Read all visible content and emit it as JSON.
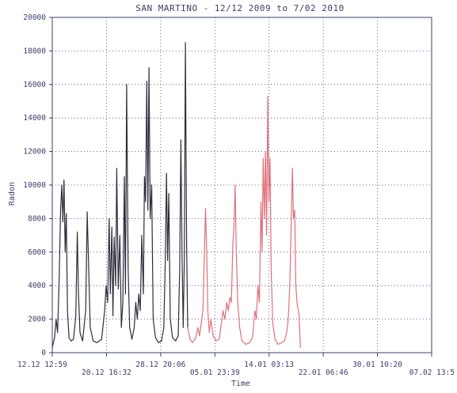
{
  "chart_data": {
    "type": "line",
    "title": "SAN MARTINO - 12/12 2009 to 7/02 2010",
    "xlabel": "Time",
    "ylabel": "Radon",
    "ylim": [
      0,
      20000
    ],
    "grid": true,
    "y_ticks": [
      0,
      2000,
      4000,
      6000,
      8000,
      10000,
      12000,
      14000,
      16000,
      18000,
      20000
    ],
    "y_tick_labels": [
      "0",
      "2000",
      "4000",
      "6000",
      "8000",
      "10000",
      "12000",
      "14000",
      "16000",
      "18000",
      "20000"
    ],
    "x_ticks": [
      {
        "label": "12.12 12:59",
        "pos": 0.0,
        "row": 0
      },
      {
        "label": "20.12 16:32",
        "pos": 0.1429,
        "row": 1
      },
      {
        "label": "28.12 20:06",
        "pos": 0.2857,
        "row": 0
      },
      {
        "label": "05.01 23:39",
        "pos": 0.4286,
        "row": 1
      },
      {
        "label": "14.01 03:13",
        "pos": 0.5714,
        "row": 0
      },
      {
        "label": "22.01 06:46",
        "pos": 0.7143,
        "row": 1
      },
      {
        "label": "30.01 10:20",
        "pos": 0.8571,
        "row": 0
      },
      {
        "label": "07.02 13:5",
        "pos": 1.0,
        "row": 1
      }
    ],
    "colors": {
      "frame": "#3a3f6e",
      "grid": "#3a3f6e",
      "series_1": "#2b2f3a",
      "series_2": "#e0707a"
    },
    "series": [
      {
        "color": "#2b2f3a",
        "points": [
          [
            0.0,
            300
          ],
          [
            0.006,
            900
          ],
          [
            0.01,
            2000
          ],
          [
            0.014,
            1200
          ],
          [
            0.018,
            4200
          ],
          [
            0.022,
            8500
          ],
          [
            0.025,
            10000
          ],
          [
            0.028,
            7800
          ],
          [
            0.031,
            10300
          ],
          [
            0.034,
            6000
          ],
          [
            0.037,
            8300
          ],
          [
            0.04,
            2500
          ],
          [
            0.044,
            900
          ],
          [
            0.05,
            700
          ],
          [
            0.056,
            800
          ],
          [
            0.062,
            2200
          ],
          [
            0.066,
            7200
          ],
          [
            0.069,
            3500
          ],
          [
            0.073,
            1200
          ],
          [
            0.08,
            700
          ],
          [
            0.088,
            2500
          ],
          [
            0.092,
            8400
          ],
          [
            0.096,
            5000
          ],
          [
            0.1,
            1500
          ],
          [
            0.108,
            700
          ],
          [
            0.118,
            600
          ],
          [
            0.13,
            800
          ],
          [
            0.138,
            2500
          ],
          [
            0.142,
            4000
          ],
          [
            0.146,
            3000
          ],
          [
            0.15,
            8000
          ],
          [
            0.153,
            3500
          ],
          [
            0.157,
            7500
          ],
          [
            0.16,
            2200
          ],
          [
            0.163,
            6900
          ],
          [
            0.167,
            4000
          ],
          [
            0.17,
            11000
          ],
          [
            0.174,
            3800
          ],
          [
            0.178,
            7000
          ],
          [
            0.182,
            1500
          ],
          [
            0.186,
            3000
          ],
          [
            0.19,
            10500
          ],
          [
            0.193,
            3500
          ],
          [
            0.196,
            16000
          ],
          [
            0.2,
            5000
          ],
          [
            0.204,
            1500
          ],
          [
            0.21,
            800
          ],
          [
            0.216,
            1500
          ],
          [
            0.22,
            3000
          ],
          [
            0.224,
            2000
          ],
          [
            0.228,
            3500
          ],
          [
            0.232,
            2500
          ],
          [
            0.236,
            7000
          ],
          [
            0.24,
            3500
          ],
          [
            0.243,
            10500
          ],
          [
            0.246,
            9000
          ],
          [
            0.249,
            16200
          ],
          [
            0.252,
            8500
          ],
          [
            0.255,
            17000
          ],
          [
            0.258,
            8000
          ],
          [
            0.262,
            10000
          ],
          [
            0.266,
            2000
          ],
          [
            0.272,
            900
          ],
          [
            0.28,
            600
          ],
          [
            0.288,
            700
          ],
          [
            0.294,
            1500
          ],
          [
            0.298,
            5500
          ],
          [
            0.301,
            10700
          ],
          [
            0.304,
            5500
          ],
          [
            0.307,
            9500
          ],
          [
            0.311,
            2000
          ],
          [
            0.317,
            900
          ],
          [
            0.325,
            700
          ],
          [
            0.332,
            1000
          ],
          [
            0.336,
            5000
          ],
          [
            0.339,
            12700
          ],
          [
            0.342,
            6000
          ],
          [
            0.345,
            1500
          ],
          [
            0.348,
            5500
          ],
          [
            0.351,
            18500
          ],
          [
            0.354,
            6500
          ],
          [
            0.357,
            1500
          ]
        ]
      },
      {
        "color": "#e0707a",
        "points": [
          [
            0.357,
            1500
          ],
          [
            0.363,
            800
          ],
          [
            0.37,
            600
          ],
          [
            0.378,
            900
          ],
          [
            0.384,
            1500
          ],
          [
            0.388,
            1000
          ],
          [
            0.393,
            1800
          ],
          [
            0.397,
            2500
          ],
          [
            0.401,
            6000
          ],
          [
            0.404,
            8600
          ],
          [
            0.407,
            6000
          ],
          [
            0.41,
            2500
          ],
          [
            0.414,
            1200
          ],
          [
            0.418,
            2000
          ],
          [
            0.424,
            1000
          ],
          [
            0.432,
            700
          ],
          [
            0.44,
            800
          ],
          [
            0.446,
            1800
          ],
          [
            0.45,
            2500
          ],
          [
            0.455,
            2000
          ],
          [
            0.46,
            3000
          ],
          [
            0.464,
            2500
          ],
          [
            0.468,
            3300
          ],
          [
            0.472,
            3000
          ],
          [
            0.476,
            6500
          ],
          [
            0.479,
            7500
          ],
          [
            0.482,
            10000
          ],
          [
            0.485,
            6000
          ],
          [
            0.489,
            3000
          ],
          [
            0.494,
            1500
          ],
          [
            0.5,
            700
          ],
          [
            0.51,
            500
          ],
          [
            0.52,
            600
          ],
          [
            0.528,
            900
          ],
          [
            0.534,
            2500
          ],
          [
            0.538,
            2000
          ],
          [
            0.542,
            4000
          ],
          [
            0.546,
            3000
          ],
          [
            0.55,
            9000
          ],
          [
            0.553,
            6000
          ],
          [
            0.556,
            11600
          ],
          [
            0.559,
            8000
          ],
          [
            0.562,
            12000
          ],
          [
            0.565,
            7000
          ],
          [
            0.568,
            15300
          ],
          [
            0.571,
            9000
          ],
          [
            0.574,
            11600
          ],
          [
            0.577,
            5000
          ],
          [
            0.581,
            1800
          ],
          [
            0.587,
            800
          ],
          [
            0.595,
            500
          ],
          [
            0.605,
            600
          ],
          [
            0.612,
            700
          ],
          [
            0.618,
            1200
          ],
          [
            0.622,
            2000
          ],
          [
            0.626,
            4000
          ],
          [
            0.63,
            8000
          ],
          [
            0.633,
            11000
          ],
          [
            0.636,
            8000
          ],
          [
            0.639,
            8500
          ],
          [
            0.642,
            4000
          ],
          [
            0.646,
            2800
          ],
          [
            0.65,
            2400
          ],
          [
            0.654,
            300
          ]
        ]
      }
    ]
  }
}
